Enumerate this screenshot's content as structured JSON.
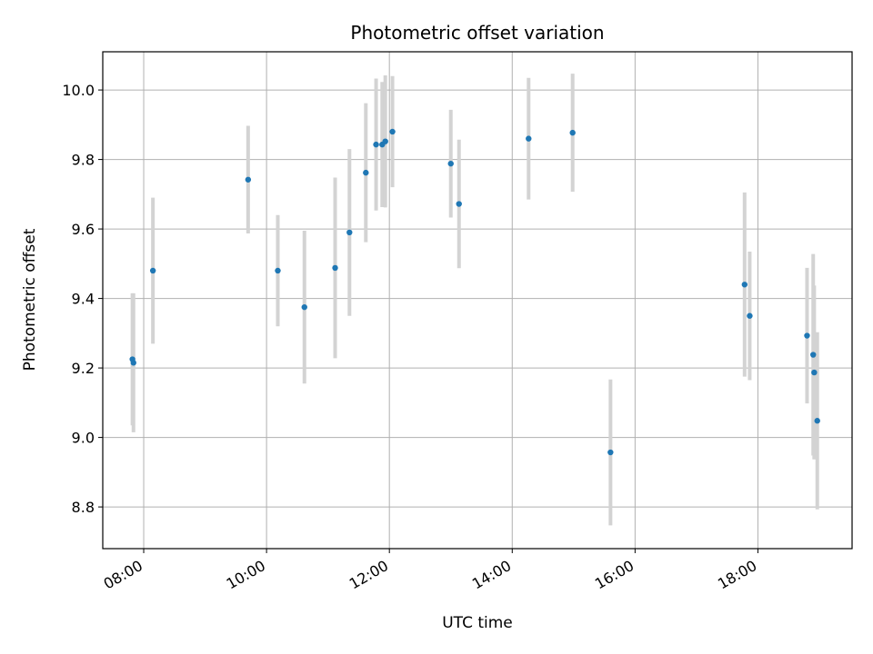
{
  "chart_data": {
    "type": "scatter",
    "title": "Photometric offset variation",
    "xlabel": "UTC time",
    "ylabel": "Photometric offset",
    "x_tick_labels": [
      "08:00",
      "10:00",
      "12:00",
      "14:00",
      "16:00",
      "18:00"
    ],
    "y_tick_labels": [
      "8.8",
      "9.0",
      "9.2",
      "9.4",
      "9.6",
      "9.8",
      "10.0"
    ],
    "xlim": [
      "07:20",
      "19:32"
    ],
    "ylim": [
      8.68,
      10.11
    ],
    "grid": true,
    "marker_color": "#1f77b4",
    "errorbar_color": "#d3d3d3",
    "points": [
      {
        "time": "07:49",
        "y": 9.225,
        "yerr": 0.19
      },
      {
        "time": "07:50",
        "y": 9.215,
        "yerr": 0.2
      },
      {
        "time": "08:09",
        "y": 9.48,
        "yerr": 0.21
      },
      {
        "time": "09:42",
        "y": 9.742,
        "yerr": 0.155
      },
      {
        "time": "10:11",
        "y": 9.48,
        "yerr": 0.16
      },
      {
        "time": "10:37",
        "y": 9.375,
        "yerr": 0.22
      },
      {
        "time": "11:07",
        "y": 9.488,
        "yerr": 0.26
      },
      {
        "time": "11:21",
        "y": 9.59,
        "yerr": 0.24
      },
      {
        "time": "11:37",
        "y": 9.762,
        "yerr": 0.2
      },
      {
        "time": "11:47",
        "y": 9.843,
        "yerr": 0.19
      },
      {
        "time": "11:53",
        "y": 9.843,
        "yerr": 0.18
      },
      {
        "time": "11:56",
        "y": 9.852,
        "yerr": 0.19
      },
      {
        "time": "12:03",
        "y": 9.88,
        "yerr": 0.16
      },
      {
        "time": "13:00",
        "y": 9.788,
        "yerr": 0.155
      },
      {
        "time": "13:08",
        "y": 9.672,
        "yerr": 0.185
      },
      {
        "time": "14:16",
        "y": 9.86,
        "yerr": 0.175
      },
      {
        "time": "14:59",
        "y": 9.877,
        "yerr": 0.17
      },
      {
        "time": "15:36",
        "y": 8.957,
        "yerr": 0.21
      },
      {
        "time": "17:47",
        "y": 9.44,
        "yerr": 0.265
      },
      {
        "time": "17:52",
        "y": 9.35,
        "yerr": 0.185
      },
      {
        "time": "18:48",
        "y": 9.293,
        "yerr": 0.195
      },
      {
        "time": "18:54",
        "y": 9.238,
        "yerr": 0.29
      },
      {
        "time": "18:55",
        "y": 9.187,
        "yerr": 0.25
      },
      {
        "time": "18:58",
        "y": 9.048,
        "yerr": 0.255
      }
    ]
  }
}
